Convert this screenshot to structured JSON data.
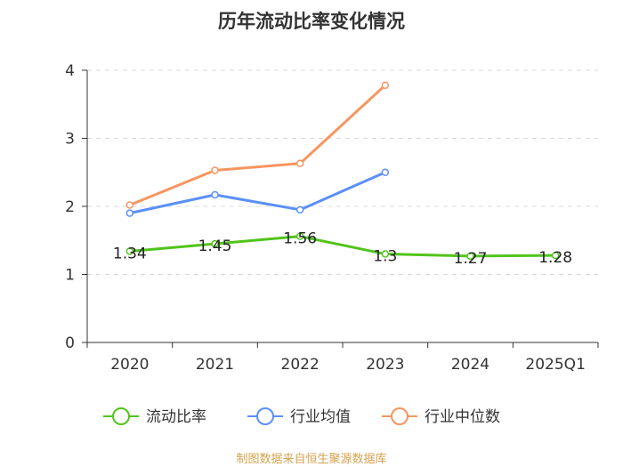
{
  "chart_data": {
    "type": "line",
    "title": "历年流动比率变化情况",
    "categories": [
      "2020",
      "2021",
      "2022",
      "2023",
      "2024",
      "2025Q1"
    ],
    "ylim": [
      0,
      4
    ],
    "yticks": [
      "0",
      "1",
      "2",
      "3",
      "4"
    ],
    "grid": true,
    "legend_position": "bottom",
    "series": [
      {
        "name": "流动比率",
        "color": "#52c41a",
        "values": [
          1.34,
          1.45,
          1.56,
          1.3,
          1.27,
          1.28
        ],
        "labels": [
          "1.34",
          "1.45",
          "1.56",
          "1.3",
          "1.27",
          "1.28"
        ]
      },
      {
        "name": "行业均值",
        "color": "#5b8ff9",
        "values": [
          1.9,
          2.17,
          1.95,
          2.5,
          null,
          null
        ]
      },
      {
        "name": "行业中位数",
        "color": "#f7955f",
        "values": [
          2.02,
          2.53,
          2.63,
          3.78,
          null,
          null
        ]
      }
    ],
    "source": "制图数据来自恒生聚源数据库",
    "source_color": "#d4a24c"
  }
}
